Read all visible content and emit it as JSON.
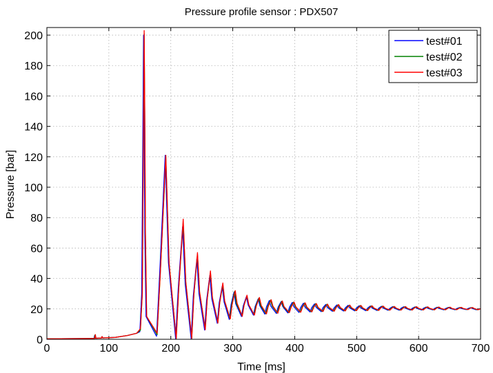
{
  "chart_data": {
    "type": "line",
    "title": "Pressure profile sensor : PDX507",
    "xlabel": "Time [ms]",
    "ylabel": "Pressure [bar]",
    "xlim": [
      0,
      700
    ],
    "ylim": [
      0,
      205
    ],
    "xticks": [
      "0",
      "100",
      "200",
      "300",
      "400",
      "500",
      "600",
      "700"
    ],
    "yticks": [
      "0",
      "20",
      "40",
      "60",
      "80",
      "100",
      "120",
      "140",
      "160",
      "180",
      "200"
    ],
    "grid": true,
    "legend_position": "top-right",
    "baseline_pressure": 20,
    "series": [
      {
        "name": "test#01",
        "color": "#0000ff",
        "peaks": [
          [
            156,
            200
          ],
          [
            191,
            121
          ],
          [
            219,
            74
          ],
          [
            242,
            53
          ],
          [
            263,
            42
          ],
          [
            283,
            35
          ],
          [
            302,
            31
          ],
          [
            322,
            28
          ],
          [
            341,
            26.5
          ],
          [
            359,
            25.5
          ],
          [
            378,
            24.8
          ],
          [
            396,
            24.2
          ],
          [
            414,
            23.7
          ],
          [
            432,
            23.3
          ],
          [
            450,
            22.9
          ],
          [
            468,
            22.6
          ],
          [
            486,
            22.3
          ],
          [
            504,
            22.1
          ],
          [
            522,
            21.9
          ],
          [
            540,
            21.7
          ],
          [
            558,
            21.5
          ],
          [
            576,
            21.4
          ],
          [
            594,
            21.3
          ],
          [
            612,
            21.2
          ],
          [
            630,
            21.1
          ],
          [
            648,
            21.0
          ],
          [
            666,
            20.9
          ],
          [
            684,
            20.8
          ]
        ]
      },
      {
        "name": "test#02",
        "color": "#008000",
        "peaks": [
          [
            157,
            201
          ],
          [
            192,
            120
          ],
          [
            220,
            77
          ],
          [
            243,
            56
          ],
          [
            264,
            44
          ],
          [
            284,
            36
          ],
          [
            303,
            31.5
          ],
          [
            323,
            28.5
          ],
          [
            342,
            27
          ],
          [
            361,
            25.8
          ],
          [
            379,
            25
          ],
          [
            398,
            24.4
          ],
          [
            416,
            23.9
          ],
          [
            434,
            23.5
          ],
          [
            452,
            23.1
          ],
          [
            470,
            22.7
          ],
          [
            488,
            22.4
          ],
          [
            506,
            22.2
          ],
          [
            524,
            22.0
          ],
          [
            542,
            21.8
          ],
          [
            560,
            21.6
          ],
          [
            578,
            21.5
          ],
          [
            596,
            21.4
          ],
          [
            614,
            21.3
          ],
          [
            632,
            21.2
          ],
          [
            650,
            21.1
          ],
          [
            668,
            21.0
          ],
          [
            686,
            20.9
          ]
        ]
      },
      {
        "name": "test#03",
        "color": "#ff0000",
        "peaks": [
          [
            157,
            203
          ],
          [
            192,
            121
          ],
          [
            220,
            79
          ],
          [
            243,
            57
          ],
          [
            264,
            45
          ],
          [
            284,
            37
          ],
          [
            304,
            32
          ],
          [
            323,
            29
          ],
          [
            343,
            27.5
          ],
          [
            362,
            26
          ],
          [
            380,
            25.2
          ],
          [
            399,
            24.5
          ],
          [
            417,
            24
          ],
          [
            435,
            23.5
          ],
          [
            453,
            23.1
          ],
          [
            471,
            22.8
          ],
          [
            489,
            22.5
          ],
          [
            507,
            22.2
          ],
          [
            525,
            22.0
          ],
          [
            543,
            21.8
          ],
          [
            561,
            21.6
          ],
          [
            579,
            21.5
          ],
          [
            597,
            21.4
          ],
          [
            615,
            21.3
          ],
          [
            633,
            21.2
          ],
          [
            651,
            21.1
          ],
          [
            669,
            21.0
          ],
          [
            687,
            20.9
          ]
        ]
      }
    ]
  }
}
